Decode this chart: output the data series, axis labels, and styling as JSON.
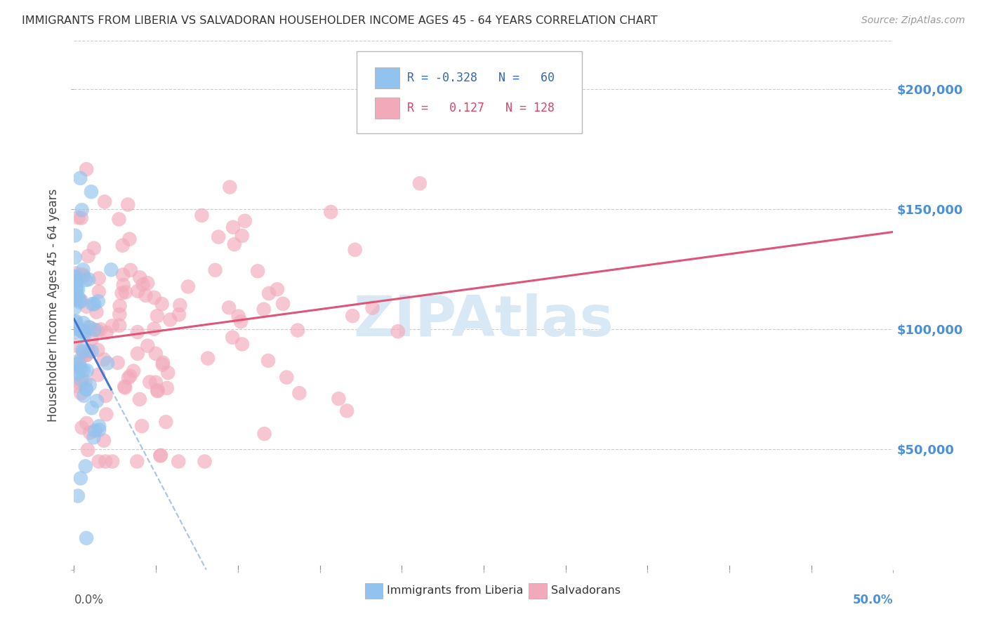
{
  "title": "IMMIGRANTS FROM LIBERIA VS SALVADORAN HOUSEHOLDER INCOME AGES 45 - 64 YEARS CORRELATION CHART",
  "source": "Source: ZipAtlas.com",
  "ylabel": "Householder Income Ages 45 - 64 years",
  "xmin": 0.0,
  "xmax": 0.5,
  "ymin": 0,
  "ymax": 220000,
  "liberia_R": -0.328,
  "liberia_N": 60,
  "salvadoran_R": 0.127,
  "salvadoran_N": 128,
  "liberia_color": "#92C2EE",
  "salvadoran_color": "#F2AABB",
  "liberia_line_color": "#4477CC",
  "salvadoran_line_color": "#DD5577",
  "background_color": "#FFFFFF",
  "grid_color": "#CCCCCC",
  "title_color": "#333333",
  "source_color": "#999999",
  "watermark_color": "#D8E8F5",
  "raxis_color": "#4A90D9",
  "legend_text_liberia_color": "#3366BB",
  "legend_text_salvadoran_color": "#DD4466"
}
